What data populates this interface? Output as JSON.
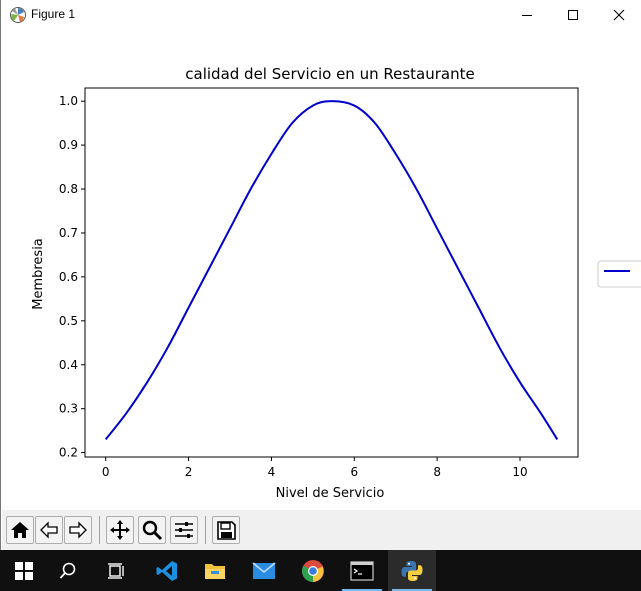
{
  "window": {
    "title": "Figure 1",
    "controls": {
      "minimize": "—",
      "maximize": "☐",
      "close": "✕"
    }
  },
  "chart_data": {
    "type": "line",
    "title": "calidad del Servicio en un Restaurante",
    "xlabel": "Nivel de Servicio",
    "ylabel": "Membresia",
    "xlim": [
      -0.5,
      11.4
    ],
    "ylim": [
      0.19,
      1.03
    ],
    "xticks": [
      0,
      2,
      4,
      6,
      8,
      10
    ],
    "yticks": [
      0.2,
      0.3,
      0.4,
      0.5,
      0.6,
      0.7,
      0.8,
      0.9,
      1.0
    ],
    "xtick_labels": [
      "0",
      "2",
      "4",
      "6",
      "8",
      "10"
    ],
    "ytick_labels": [
      "0.2",
      "0.3",
      "0.4",
      "0.5",
      "0.6",
      "0.7",
      "0.8",
      "0.9",
      "1.0"
    ],
    "grid": false,
    "legend": {
      "placement": "right, outside",
      "entries": [
        ""
      ]
    },
    "series": [
      {
        "color": "#0000cc",
        "x": [
          0,
          0.5,
          1,
          1.5,
          2,
          2.5,
          3,
          3.5,
          4,
          4.5,
          5,
          5.45,
          6,
          6.5,
          7,
          7.5,
          8,
          8.5,
          9,
          9.5,
          10,
          10.5,
          10.9
        ],
        "y": [
          0.23,
          0.29,
          0.36,
          0.44,
          0.53,
          0.62,
          0.71,
          0.8,
          0.88,
          0.95,
          0.99,
          1.0,
          0.99,
          0.95,
          0.88,
          0.8,
          0.71,
          0.62,
          0.53,
          0.44,
          0.36,
          0.29,
          0.23
        ]
      }
    ]
  },
  "toolbar": {
    "buttons": [
      "home-icon",
      "back-icon",
      "forward-icon",
      "pan-icon",
      "zoom-icon",
      "configure-icon",
      "save-icon"
    ]
  },
  "taskbar": {
    "items": [
      "windows-start-icon",
      "search-icon",
      "task-view-icon",
      "vscode-icon",
      "file-explorer-icon",
      "mail-icon",
      "chrome-icon",
      "terminal-icon",
      "python-icon"
    ],
    "active": "python-icon"
  }
}
